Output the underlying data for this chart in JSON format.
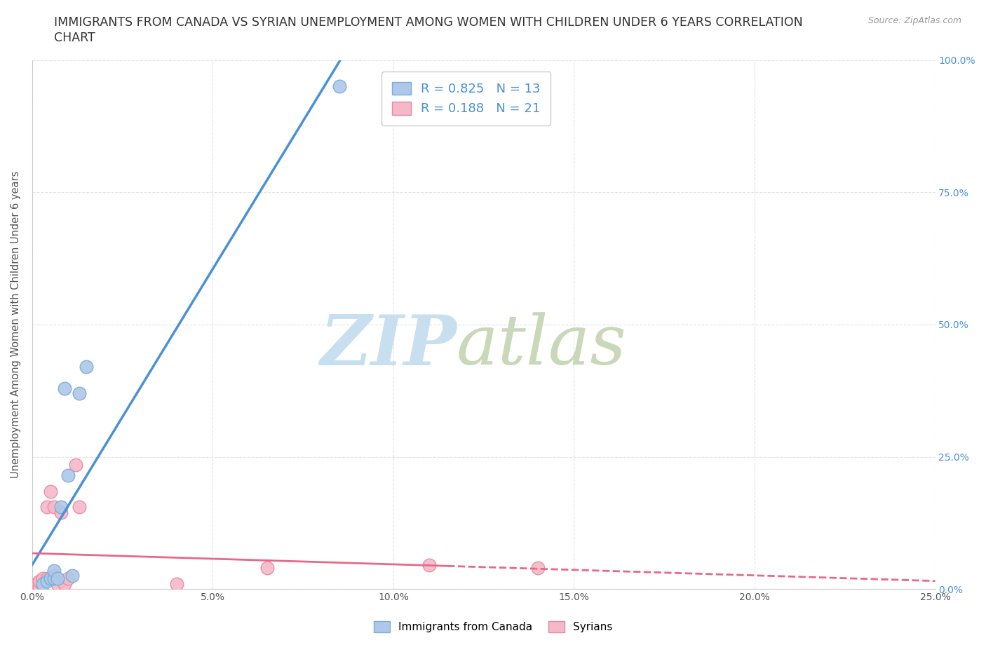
{
  "title_line1": "IMMIGRANTS FROM CANADA VS SYRIAN UNEMPLOYMENT AMONG WOMEN WITH CHILDREN UNDER 6 YEARS CORRELATION",
  "title_line2": "CHART",
  "source": "Source: ZipAtlas.com",
  "ylabel": "Unemployment Among Women with Children Under 6 years",
  "xlabel_bottom": "Immigrants from Canada",
  "xlim": [
    0.0,
    0.25
  ],
  "ylim": [
    0.0,
    1.0
  ],
  "xticks": [
    0.0,
    0.05,
    0.1,
    0.15,
    0.2,
    0.25
  ],
  "yticks": [
    0.0,
    0.25,
    0.5,
    0.75,
    1.0
  ],
  "xtick_labels": [
    "0.0%",
    "5.0%",
    "10.0%",
    "15.0%",
    "20.0%",
    "25.0%"
  ],
  "ytick_labels_right": [
    "0.0%",
    "25.0%",
    "50.0%",
    "75.0%",
    "100.0%"
  ],
  "canada_color": "#adc8e8",
  "syrian_color": "#f5b8c8",
  "canada_edge": "#7aacd4",
  "syrian_edge": "#e888a0",
  "trend_canada_color": "#4a90d9",
  "trend_syrian_color": "#e86888",
  "background_color": "#ffffff",
  "legend_R_canada": "0.825",
  "legend_N_canada": "13",
  "legend_R_syrian": "0.188",
  "legend_N_syrian": "21",
  "canada_x": [
    0.003,
    0.004,
    0.005,
    0.006,
    0.006,
    0.007,
    0.008,
    0.009,
    0.01,
    0.011,
    0.013,
    0.015,
    0.085
  ],
  "canada_y": [
    0.01,
    0.015,
    0.02,
    0.02,
    0.035,
    0.02,
    0.155,
    0.38,
    0.215,
    0.025,
    0.37,
    0.42,
    0.95
  ],
  "syrian_x": [
    0.001,
    0.002,
    0.002,
    0.003,
    0.003,
    0.004,
    0.004,
    0.005,
    0.005,
    0.006,
    0.006,
    0.007,
    0.008,
    0.009,
    0.01,
    0.012,
    0.013,
    0.04,
    0.065,
    0.11,
    0.14
  ],
  "syrian_y": [
    0.01,
    0.005,
    0.015,
    0.01,
    0.02,
    0.155,
    0.02,
    0.185,
    0.02,
    0.025,
    0.155,
    0.01,
    0.145,
    0.01,
    0.02,
    0.235,
    0.155,
    0.01,
    0.04,
    0.045,
    0.04
  ],
  "grid_color": "#e0e0e0",
  "title_fontsize": 12.5,
  "axis_label_fontsize": 10.5,
  "tick_fontsize": 10,
  "legend_fontsize": 13,
  "marker_size": 180
}
